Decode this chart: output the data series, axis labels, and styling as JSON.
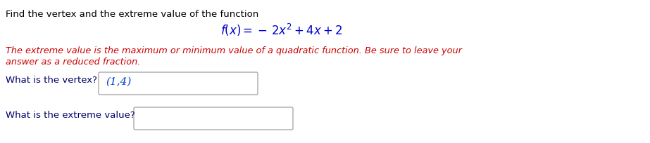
{
  "title_line1": "Find the vertex and the extreme value of the function",
  "title_line1_color": "#000000",
  "function_color": "#0000cc",
  "italic_text_line1": "The extreme value is the maximum or minimum value of a quadratic function. Be sure to leave your",
  "italic_text_line2": "answer as a reduced fraction.",
  "italic_color": "#cc0000",
  "vertex_label": "What is the vertex?",
  "vertex_answer": "(1,4)",
  "vertex_answer_color": "#0044cc",
  "extreme_label": "What is the extreme value?",
  "box_edge_color": "#aaaaaa",
  "background_color": "#ffffff",
  "label_color": "#000066"
}
